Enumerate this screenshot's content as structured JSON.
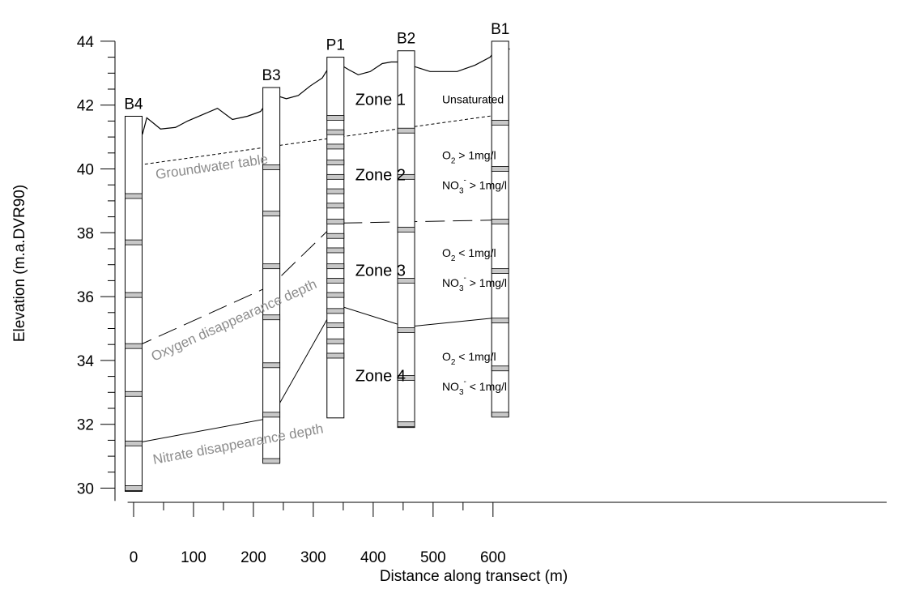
{
  "chart_data": {
    "type": "cross-section",
    "xlabel": "Distance along transect (m)",
    "ylabel": "Elevation (m.a.DVR90)",
    "xlim": [
      -10,
      640
    ],
    "ylim": [
      29.6,
      44
    ],
    "x_ticks": [
      0,
      100,
      200,
      300,
      400,
      500,
      600
    ],
    "y_ticks": [
      30,
      32,
      34,
      36,
      38,
      40,
      42,
      44
    ],
    "wells": [
      {
        "name": "B4",
        "x": 0,
        "top": 41.65,
        "bottom": 29.9,
        "screens": [
          39.15,
          37.7,
          36.05,
          34.45,
          32.95,
          31.4,
          30.0
        ]
      },
      {
        "name": "B3",
        "x": 230,
        "top": 42.55,
        "bottom": 30.8,
        "screens": [
          40.05,
          38.6,
          36.95,
          35.35,
          33.85,
          32.3,
          30.85
        ]
      },
      {
        "name": "P1",
        "x": 337,
        "top": 43.5,
        "bottom": 32.2,
        "screens": [
          41.6,
          41.15,
          40.7,
          40.2,
          39.75,
          39.3,
          38.85,
          38.35,
          37.9,
          37.45,
          36.95,
          36.5,
          36.05,
          35.55,
          35.1,
          34.6,
          34.15
        ]
      },
      {
        "name": "B2",
        "x": 455,
        "top": 43.7,
        "bottom": 31.9,
        "screens": [
          41.2,
          39.75,
          38.1,
          36.5,
          34.95,
          33.45,
          32.0
        ]
      },
      {
        "name": "B1",
        "x": 612,
        "top": 44.0,
        "bottom": 32.25,
        "screens": [
          41.45,
          40.0,
          38.35,
          36.8,
          35.25,
          33.75,
          32.3
        ]
      }
    ],
    "ground_surface": [
      [
        0,
        41.25
      ],
      [
        15,
        41.1
      ],
      [
        22,
        41.6
      ],
      [
        32,
        41.45
      ],
      [
        45,
        41.25
      ],
      [
        70,
        41.3
      ],
      [
        90,
        41.5
      ],
      [
        115,
        41.7
      ],
      [
        140,
        41.9
      ],
      [
        165,
        41.55
      ],
      [
        190,
        41.65
      ],
      [
        212,
        41.8
      ],
      [
        225,
        42.15
      ],
      [
        238,
        42.3
      ],
      [
        255,
        42.2
      ],
      [
        275,
        42.3
      ],
      [
        295,
        42.6
      ],
      [
        315,
        42.85
      ],
      [
        330,
        43.3
      ],
      [
        342,
        43.3
      ],
      [
        360,
        43.1
      ],
      [
        375,
        42.95
      ],
      [
        395,
        43.05
      ],
      [
        415,
        43.3
      ],
      [
        430,
        43.35
      ],
      [
        448,
        43.35
      ],
      [
        470,
        43.2
      ],
      [
        495,
        43.05
      ],
      [
        540,
        43.05
      ],
      [
        570,
        43.25
      ],
      [
        595,
        43.5
      ],
      [
        612,
        43.9
      ],
      [
        628,
        43.75
      ]
    ],
    "groundwater_table": [
      [
        0,
        40.1
      ],
      [
        612,
        41.7
      ]
    ],
    "oxygen_depth": [
      [
        0,
        34.4
      ],
      [
        230,
        36.35
      ],
      [
        337,
        38.3
      ],
      [
        612,
        38.4
      ]
    ],
    "nitrate_depth": [
      [
        0,
        31.4
      ],
      [
        230,
        32.2
      ],
      [
        337,
        35.75
      ],
      [
        455,
        35.05
      ],
      [
        612,
        35.35
      ]
    ],
    "labels": {
      "groundwater_table": "Groundwater table",
      "oxygen_depth": "Oxygen disappearance depth",
      "nitrate_depth": "Nitrate disappearance depth"
    },
    "zones": [
      {
        "label": "Zone 1",
        "x": 370,
        "y": 42.0
      },
      {
        "label": "Zone 2",
        "x": 370,
        "y": 39.65
      },
      {
        "label": "Zone 3",
        "x": 370,
        "y": 36.65
      },
      {
        "label": "Zone 4",
        "x": 370,
        "y": 33.35
      }
    ],
    "conditions": [
      {
        "x": 515,
        "y": 42.05,
        "lines": [
          {
            "text": "Unsaturated"
          }
        ]
      },
      {
        "x": 515,
        "y": 40.3,
        "lines": [
          {
            "base": "O",
            "sub": "2",
            "text": " > 1mg/l"
          },
          {
            "base": "NO",
            "sub": "3",
            "sup": "-",
            "text": " > 1mg/l"
          }
        ]
      },
      {
        "x": 515,
        "y": 37.25,
        "lines": [
          {
            "base": "O",
            "sub": "2",
            "text": " < 1mg/l"
          },
          {
            "base": "NO",
            "sub": "3",
            "sup": "-",
            "text": " > 1mg/l"
          }
        ]
      },
      {
        "x": 515,
        "y": 34.0,
        "lines": [
          {
            "base": "O",
            "sub": "2",
            "text": " < 1mg/l"
          },
          {
            "base": "NO",
            "sub": "3",
            "sup": "-",
            "text": " < 1mg/l"
          }
        ]
      }
    ]
  }
}
